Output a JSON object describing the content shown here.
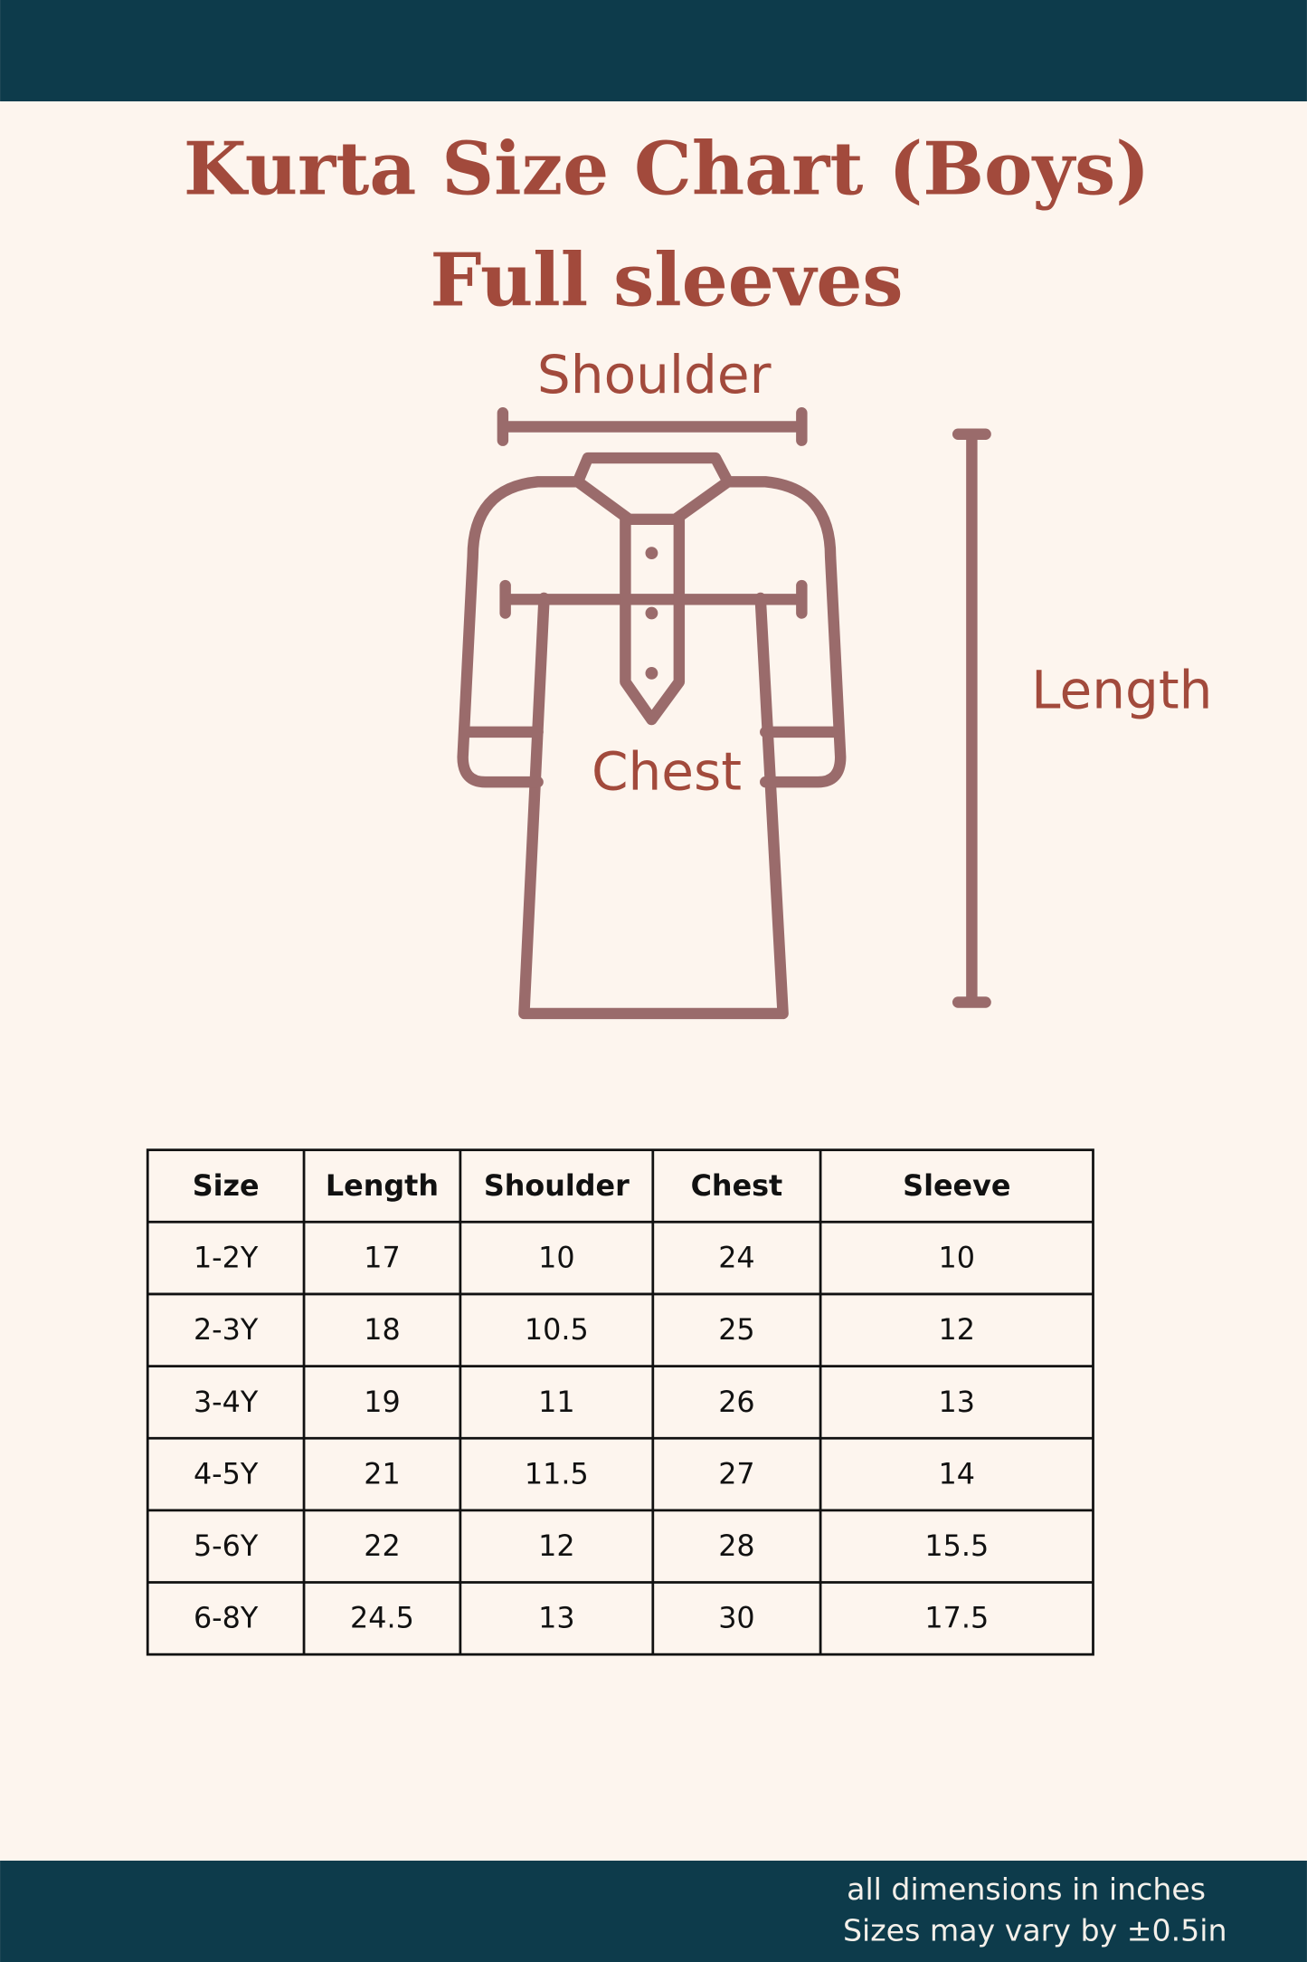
{
  "header": {
    "title": "Kurta Size Chart (Boys)",
    "subtitle": "Full sleeves"
  },
  "diagram": {
    "shoulder": "Shoulder",
    "chest": "Chest",
    "length": "Length"
  },
  "table": {
    "columns": [
      "Size",
      "Length",
      "Shoulder",
      "Chest",
      "Sleeve"
    ],
    "rows": [
      [
        "1-2Y",
        17,
        10,
        24,
        10
      ],
      [
        "2-3Y",
        18,
        10.5,
        25,
        12
      ],
      [
        "3-4Y",
        19,
        11,
        26,
        13
      ],
      [
        "4-5Y",
        21,
        11.5,
        27,
        14
      ],
      [
        "5-6Y",
        22,
        12,
        28,
        15.5
      ],
      [
        "6-8Y",
        24.5,
        13,
        30,
        17.5
      ]
    ]
  },
  "footer": {
    "note": "all dimensions in inches",
    "tolerance": "Sizes may vary by ±0.5in"
  }
}
